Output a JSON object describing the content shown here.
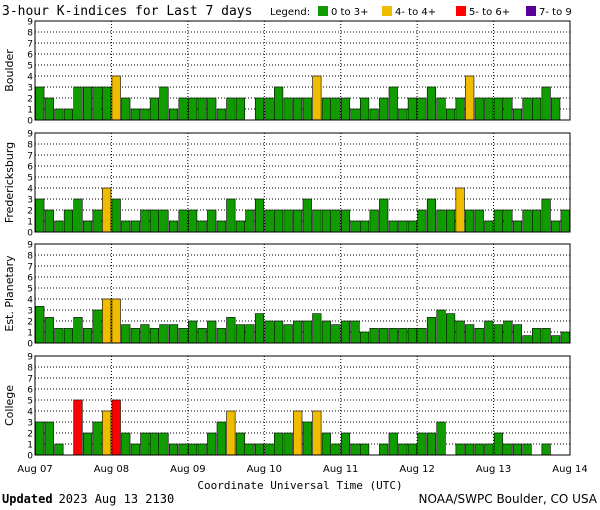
{
  "header": {
    "title": "3-hour K-indices for Last 7 days",
    "legend_label": "Legend:",
    "legend": [
      {
        "label": "0 to 3+",
        "color": "#109c00"
      },
      {
        "label": "4- to 4+",
        "color": "#f0bc00"
      },
      {
        "label": "5- to 6+",
        "color": "#ff0000"
      },
      {
        "label": "7- to 9",
        "color": "#5a0094"
      }
    ]
  },
  "footer": {
    "updated_label": "Updated",
    "updated_time": "2023 Aug 13 2130",
    "credit": "NOAA/SWPC Boulder, CO USA"
  },
  "chart_data": [
    {
      "type": "bar",
      "ylabel": "Boulder",
      "ylim": [
        0,
        9
      ],
      "yticks": [
        "0",
        "1",
        "2",
        "3",
        "4",
        "5",
        "6",
        "7",
        "8",
        "9"
      ],
      "xlabel": "",
      "xticks": [
        "Aug 07",
        "Aug 08",
        "Aug 09",
        "Aug 10",
        "Aug 11",
        "Aug 12",
        "Aug 13",
        "Aug 14"
      ],
      "grid": true,
      "values": [
        3,
        2,
        1,
        1,
        3,
        3,
        3,
        3,
        4,
        2,
        1,
        1,
        2,
        3,
        1,
        2,
        2,
        2,
        2,
        1,
        2,
        2,
        0,
        2,
        2,
        3,
        2,
        2,
        2,
        4,
        2,
        2,
        2,
        1,
        2,
        1,
        2,
        3,
        1,
        2,
        2,
        3,
        2,
        1,
        2,
        4,
        2,
        2,
        2,
        2,
        1,
        2,
        2,
        3,
        2,
        0
      ]
    },
    {
      "type": "bar",
      "ylabel": "Fredericksburg",
      "ylim": [
        0,
        9
      ],
      "yticks": [
        "0",
        "1",
        "2",
        "3",
        "4",
        "5",
        "6",
        "7",
        "8",
        "9"
      ],
      "xlabel": "",
      "xticks": [
        "Aug 07",
        "Aug 08",
        "Aug 09",
        "Aug 10",
        "Aug 11",
        "Aug 12",
        "Aug 13",
        "Aug 14"
      ],
      "grid": true,
      "values": [
        3,
        2,
        1,
        2,
        3,
        1,
        2,
        4,
        3,
        1,
        1,
        2,
        2,
        2,
        1,
        2,
        2,
        1,
        2,
        1,
        3,
        1,
        2,
        3,
        2,
        2,
        2,
        2,
        3,
        2,
        2,
        2,
        2,
        1,
        1,
        2,
        3,
        1,
        1,
        1,
        2,
        3,
        2,
        2,
        4,
        2,
        2,
        1,
        2,
        2,
        1,
        2,
        2,
        3,
        1,
        2,
        0
      ]
    },
    {
      "type": "bar",
      "ylabel": "Est. Planetary",
      "ylim": [
        0,
        9
      ],
      "yticks": [
        "0",
        "1",
        "2",
        "3",
        "4",
        "5",
        "6",
        "7",
        "8",
        "9"
      ],
      "xlabel": "",
      "xticks": [
        "Aug 07",
        "Aug 08",
        "Aug 09",
        "Aug 10",
        "Aug 11",
        "Aug 12",
        "Aug 13",
        "Aug 14"
      ],
      "grid": true,
      "values": [
        3.33,
        2.33,
        1.33,
        1.33,
        2.33,
        1.33,
        3,
        4,
        4,
        1.67,
        1.33,
        1.67,
        1.33,
        1.67,
        1.67,
        1.33,
        2,
        1.33,
        2,
        1.33,
        2.33,
        1.67,
        1.67,
        2.67,
        2,
        2,
        1.67,
        2,
        2,
        2.67,
        2,
        1.67,
        2,
        2,
        1,
        1.33,
        1.33,
        1.33,
        1.33,
        1.33,
        1.33,
        2.33,
        3,
        2.67,
        2,
        1.67,
        1.33,
        2,
        1.67,
        2,
        1.67,
        0.67,
        1.33,
        1.33,
        0.67,
        1
      ]
    },
    {
      "type": "bar",
      "ylabel": "College",
      "ylim": [
        0,
        9
      ],
      "yticks": [
        "0",
        "1",
        "2",
        "3",
        "4",
        "5",
        "6",
        "7",
        "8",
        "9"
      ],
      "xlabel": "Coordinate Universal Time (UTC)",
      "xticks": [
        "Aug 07",
        "Aug 08",
        "Aug 09",
        "Aug 10",
        "Aug 11",
        "Aug 12",
        "Aug 13",
        "Aug 14"
      ],
      "grid": true,
      "values": [
        3,
        3,
        1,
        0,
        5,
        2,
        3,
        4,
        5,
        2,
        1,
        2,
        2,
        2,
        1,
        1,
        1,
        1,
        2,
        3,
        4,
        2,
        1,
        1,
        1,
        2,
        2,
        4,
        3,
        4,
        2,
        1,
        2,
        1,
        1,
        0,
        1,
        2,
        1,
        1,
        2,
        2,
        3,
        0,
        1,
        1,
        1,
        1,
        2,
        1,
        1,
        1,
        0,
        1,
        0,
        0
      ]
    }
  ]
}
